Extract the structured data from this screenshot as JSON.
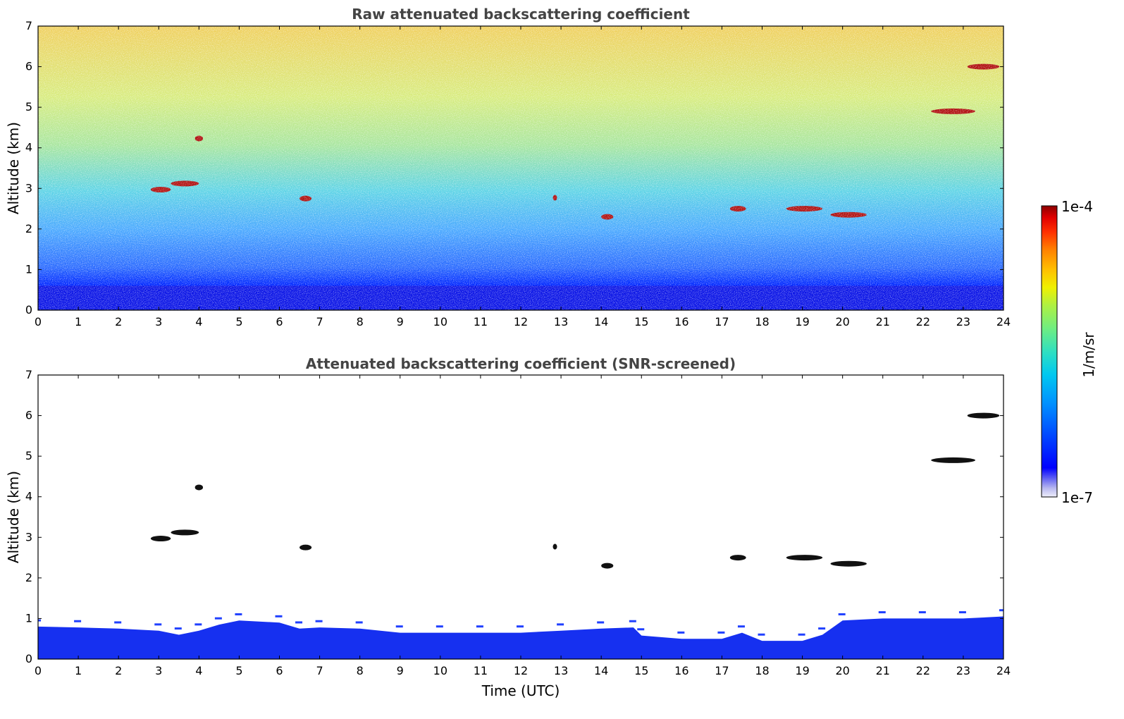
{
  "chart_data": [
    {
      "type": "heatmap",
      "title": "Raw attenuated backscattering coefficient",
      "xlabel": "",
      "ylabel": "Altitude (km)",
      "xlim": [
        0,
        24
      ],
      "ylim": [
        0,
        7
      ],
      "xticks": [
        "0",
        "1",
        "2",
        "3",
        "4",
        "5",
        "6",
        "7",
        "8",
        "9",
        "10",
        "11",
        "12",
        "13",
        "14",
        "15",
        "16",
        "17",
        "18",
        "19",
        "20",
        "21",
        "22",
        "23",
        "24"
      ],
      "yticks": [
        "0",
        "1",
        "2",
        "3",
        "4",
        "5",
        "6",
        "7"
      ],
      "features": [
        {
          "name": "boundary layer",
          "time_range": [
            0,
            24
          ],
          "altitude_range": [
            0,
            0.6
          ],
          "level": "high"
        },
        {
          "name": "cloud",
          "time_range": [
            2.8,
            3.3
          ],
          "altitude": 2.97
        },
        {
          "name": "cloud",
          "time_range": [
            3.3,
            4.0
          ],
          "altitude": 3.12
        },
        {
          "name": "cloud",
          "time_range": [
            3.9,
            4.1
          ],
          "altitude": 4.23
        },
        {
          "name": "cloud",
          "time_range": [
            6.5,
            6.8
          ],
          "altitude": 2.75
        },
        {
          "name": "cloud",
          "time_range": [
            12.8,
            12.9
          ],
          "altitude": 2.77
        },
        {
          "name": "cloud",
          "time_range": [
            14.0,
            14.3
          ],
          "altitude": 2.3
        },
        {
          "name": "cloud",
          "time_range": [
            17.2,
            17.6
          ],
          "altitude": 2.5
        },
        {
          "name": "cloud",
          "time_range": [
            18.6,
            19.5
          ],
          "altitude": 2.5
        },
        {
          "name": "cloud",
          "time_range": [
            19.7,
            20.6
          ],
          "altitude": 2.35
        },
        {
          "name": "cloud",
          "time_range": [
            22.2,
            23.3
          ],
          "altitude": 4.9
        },
        {
          "name": "cloud",
          "time_range": [
            23.1,
            23.9
          ],
          "altitude": 6.0
        }
      ]
    },
    {
      "type": "heatmap",
      "title": "Attenuated backscattering coefficient (SNR-screened)",
      "xlabel": "Time (UTC)",
      "ylabel": "Altitude (km)",
      "xlim": [
        0,
        24
      ],
      "ylim": [
        0,
        7
      ],
      "xticks": [
        "0",
        "1",
        "2",
        "3",
        "4",
        "5",
        "6",
        "7",
        "8",
        "9",
        "10",
        "11",
        "12",
        "13",
        "14",
        "15",
        "16",
        "17",
        "18",
        "19",
        "20",
        "21",
        "22",
        "23",
        "24"
      ],
      "yticks": [
        "0",
        "1",
        "2",
        "3",
        "4",
        "5",
        "6",
        "7"
      ],
      "boundary_layer_top_km": [
        [
          0,
          0.8
        ],
        [
          1,
          0.78
        ],
        [
          2,
          0.75
        ],
        [
          3,
          0.7
        ],
        [
          3.5,
          0.6
        ],
        [
          4,
          0.7
        ],
        [
          4.5,
          0.85
        ],
        [
          5,
          0.95
        ],
        [
          6,
          0.9
        ],
        [
          6.5,
          0.75
        ],
        [
          7,
          0.78
        ],
        [
          8,
          0.75
        ],
        [
          9,
          0.65
        ],
        [
          10,
          0.65
        ],
        [
          11,
          0.65
        ],
        [
          12,
          0.65
        ],
        [
          13,
          0.7
        ],
        [
          14,
          0.75
        ],
        [
          14.8,
          0.78
        ],
        [
          15,
          0.58
        ],
        [
          16,
          0.5
        ],
        [
          17,
          0.5
        ],
        [
          17.5,
          0.65
        ],
        [
          18,
          0.45
        ],
        [
          19,
          0.45
        ],
        [
          19.5,
          0.6
        ],
        [
          20,
          0.95
        ],
        [
          21,
          1.0
        ],
        [
          22,
          1.0
        ],
        [
          23,
          1.0
        ],
        [
          24,
          1.05
        ]
      ],
      "features": [
        {
          "name": "cloud",
          "time_range": [
            2.8,
            3.3
          ],
          "altitude": 2.97
        },
        {
          "name": "cloud",
          "time_range": [
            3.3,
            4.0
          ],
          "altitude": 3.12
        },
        {
          "name": "cloud",
          "time_range": [
            3.9,
            4.1
          ],
          "altitude": 4.23
        },
        {
          "name": "cloud",
          "time_range": [
            6.5,
            6.8
          ],
          "altitude": 2.75
        },
        {
          "name": "cloud",
          "time_range": [
            12.8,
            12.9
          ],
          "altitude": 2.77
        },
        {
          "name": "cloud",
          "time_range": [
            14.0,
            14.3
          ],
          "altitude": 2.3
        },
        {
          "name": "cloud",
          "time_range": [
            17.2,
            17.6
          ],
          "altitude": 2.5
        },
        {
          "name": "cloud",
          "time_range": [
            18.6,
            19.5
          ],
          "altitude": 2.5
        },
        {
          "name": "cloud",
          "time_range": [
            19.7,
            20.6
          ],
          "altitude": 2.35
        },
        {
          "name": "cloud",
          "time_range": [
            22.2,
            23.3
          ],
          "altitude": 4.9
        },
        {
          "name": "cloud",
          "time_range": [
            23.1,
            23.9
          ],
          "altitude": 6.0
        }
      ]
    }
  ],
  "colorbar": {
    "label": "1/m/sr",
    "max_label": "1e-4",
    "min_label": "1e-7",
    "scale": "log",
    "colors": [
      "#eeeefa",
      "#b8b8f0",
      "#6a6af2",
      "#0000ff",
      "#0040ff",
      "#0090ff",
      "#00c8f0",
      "#30e0c0",
      "#70ee80",
      "#b0f040",
      "#f0f000",
      "#ffc000",
      "#ff8000",
      "#ff3000",
      "#e00000",
      "#8b0000"
    ]
  }
}
